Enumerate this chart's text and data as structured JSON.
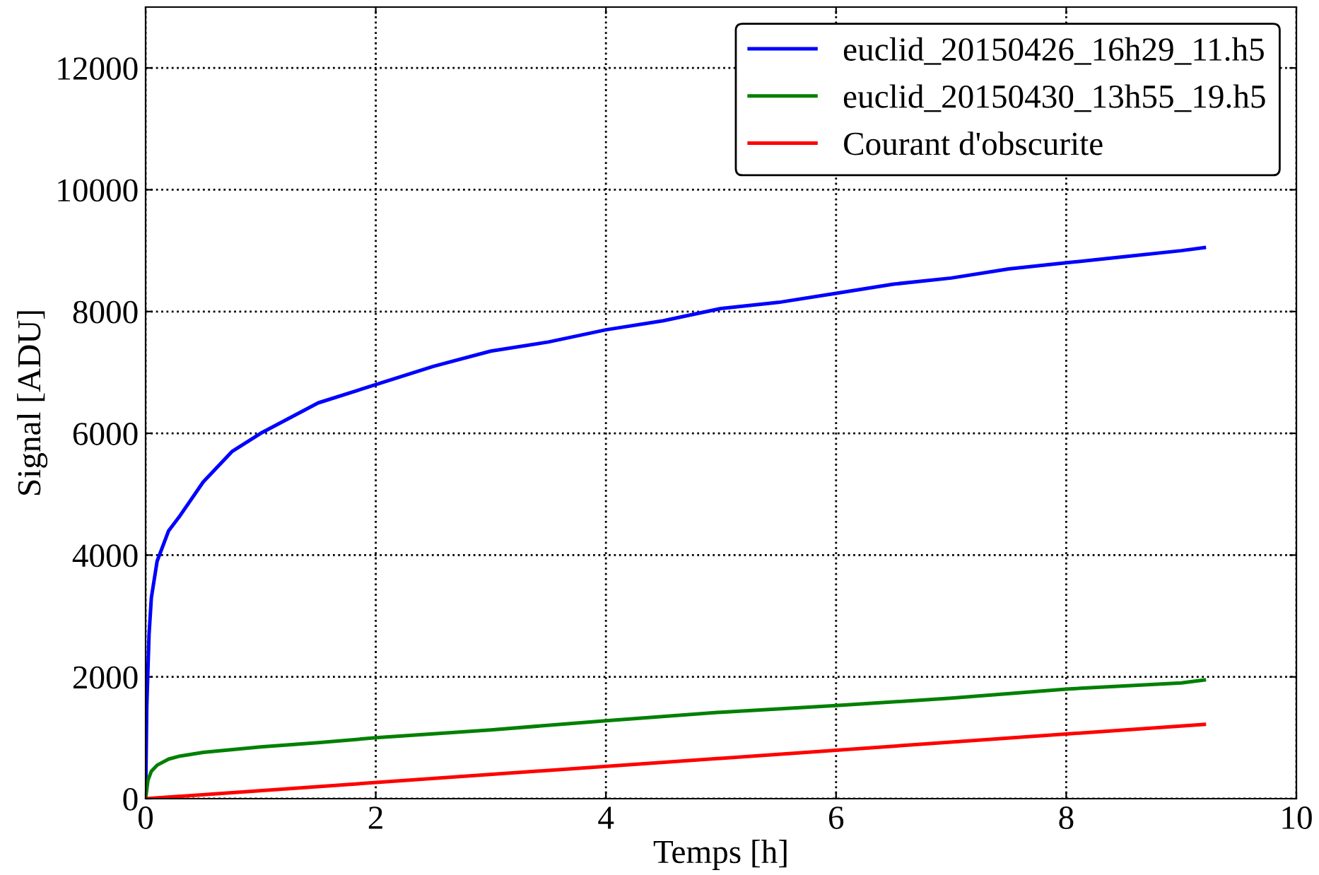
{
  "chart_data": {
    "type": "line",
    "xlabel": "Temps [h]",
    "ylabel": "Signal [ADU]",
    "xlim": [
      0,
      10
    ],
    "ylim": [
      0,
      13000
    ],
    "xticks": [
      0,
      2,
      4,
      6,
      8,
      10
    ],
    "yticks": [
      0,
      2000,
      4000,
      6000,
      8000,
      10000,
      12000
    ],
    "grid": true,
    "legend": "top right",
    "series": [
      {
        "name": "euclid_20150426_16h29_11.h5",
        "color": "#0000ff",
        "x": [
          0,
          0.01,
          0.03,
          0.05,
          0.1,
          0.2,
          0.3,
          0.5,
          0.75,
          1,
          1.5,
          2,
          2.5,
          3,
          3.5,
          4,
          4.5,
          5,
          5.5,
          6,
          6.5,
          7,
          7.5,
          8,
          8.5,
          9,
          9.2
        ],
        "values": [
          0,
          1500,
          2700,
          3300,
          3900,
          4400,
          4650,
          5200,
          5700,
          6000,
          6500,
          6800,
          7100,
          7350,
          7500,
          7700,
          7850,
          8050,
          8150,
          8300,
          8450,
          8550,
          8700,
          8800,
          8900,
          9000,
          9050
        ]
      },
      {
        "name": "euclid_20150430_13h55_19.h5",
        "color": "#008000",
        "x": [
          0,
          0.02,
          0.05,
          0.1,
          0.2,
          0.3,
          0.5,
          1,
          1.5,
          2,
          3,
          4,
          5,
          6,
          7,
          8,
          9,
          9.2
        ],
        "values": [
          0,
          300,
          450,
          550,
          650,
          700,
          760,
          850,
          920,
          1000,
          1130,
          1280,
          1420,
          1530,
          1650,
          1800,
          1900,
          1950
        ]
      },
      {
        "name": "Courant d'obscurite",
        "color": "#ff0000",
        "x": [
          0,
          9.2
        ],
        "values": [
          0,
          1220
        ]
      }
    ]
  }
}
